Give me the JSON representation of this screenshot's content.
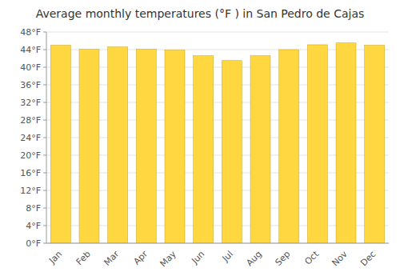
{
  "chart_data": {
    "type": "bar",
    "title": "Average monthly temperatures (°F ) in San Pedro de Cajas",
    "categories": [
      "Jan",
      "Feb",
      "Mar",
      "Apr",
      "May",
      "Jun",
      "Jul",
      "Aug",
      "Sep",
      "Oct",
      "Nov",
      "Dec"
    ],
    "values": [
      45.0,
      44.1,
      44.6,
      44.1,
      43.9,
      42.6,
      41.5,
      42.6,
      44.0,
      45.1,
      45.5,
      45.0
    ],
    "color": "#FFD740",
    "ylim": [
      0,
      48
    ],
    "yticks": [
      {
        "value": 0,
        "label": "0°F"
      },
      {
        "value": 4,
        "label": "4°F"
      },
      {
        "value": 8,
        "label": "8°F"
      },
      {
        "value": 12,
        "label": "12°F"
      },
      {
        "value": 16,
        "label": "16°F"
      },
      {
        "value": 20,
        "label": "20°F"
      },
      {
        "value": 24,
        "label": "24°F"
      },
      {
        "value": 28,
        "label": "28°F"
      },
      {
        "value": 32,
        "label": "32°F"
      },
      {
        "value": 36,
        "label": "36°F"
      },
      {
        "value": 40,
        "label": "40°F"
      },
      {
        "value": 44,
        "label": "44°F"
      },
      {
        "value": 48,
        "label": "48°F"
      }
    ],
    "grid": true
  }
}
